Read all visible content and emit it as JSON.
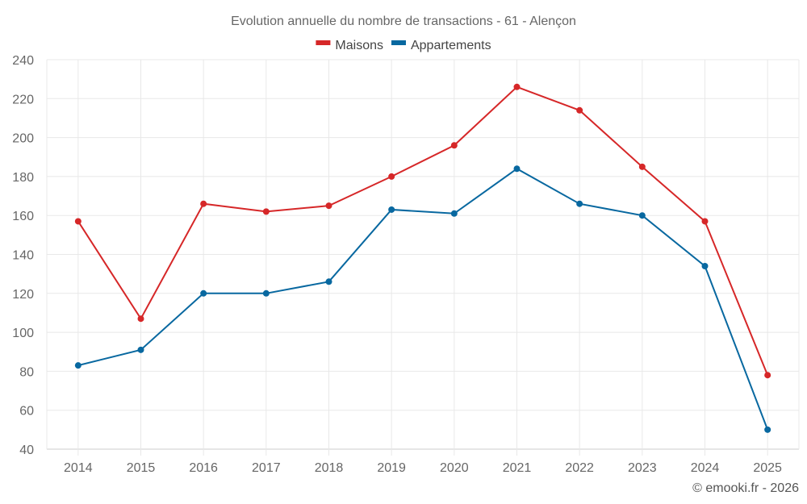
{
  "chart_data": {
    "type": "line",
    "title": "Evolution annuelle du nombre de transactions - 61 - Alençon",
    "xlabel": "",
    "ylabel": "",
    "categories": [
      "2014",
      "2015",
      "2016",
      "2017",
      "2018",
      "2019",
      "2020",
      "2021",
      "2022",
      "2023",
      "2024",
      "2025"
    ],
    "series": [
      {
        "name": "Maisons",
        "color": "#d62728",
        "values": [
          157,
          107,
          166,
          162,
          165,
          180,
          196,
          226,
          214,
          185,
          157,
          78
        ]
      },
      {
        "name": "Appartements",
        "color": "#0868a0",
        "values": [
          83,
          91,
          120,
          120,
          126,
          163,
          161,
          184,
          166,
          160,
          134,
          50
        ]
      }
    ],
    "ylim": [
      40,
      240
    ],
    "yticks": [
      40,
      60,
      80,
      100,
      120,
      140,
      160,
      180,
      200,
      220,
      240
    ],
    "grid": true,
    "legend": "top-center"
  },
  "footer": "© emooki.fr - 2026"
}
